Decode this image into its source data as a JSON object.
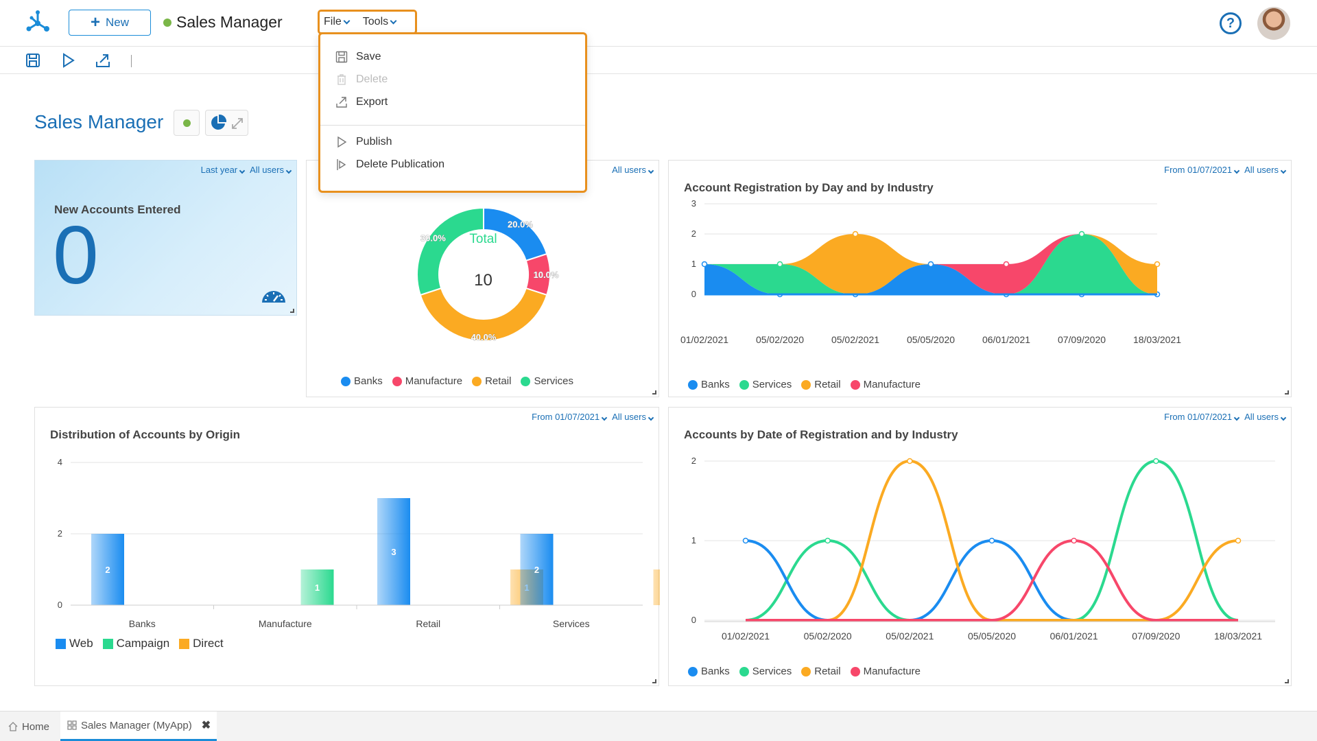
{
  "header": {
    "new_label": "New",
    "app_title": "Sales Manager",
    "menus": [
      {
        "label": "File"
      },
      {
        "label": "Tools"
      }
    ],
    "help_label": "?"
  },
  "dropdown": {
    "items": [
      {
        "label": "Save",
        "icon": "save-icon",
        "enabled": true
      },
      {
        "label": "Delete",
        "icon": "trash-icon",
        "enabled": false
      },
      {
        "label": "Export",
        "icon": "export-icon",
        "enabled": true
      },
      {
        "label": "Publish",
        "icon": "play-icon",
        "enabled": true
      },
      {
        "label": "Delete Publication",
        "icon": "unpublish-icon",
        "enabled": true
      }
    ]
  },
  "page": {
    "title": "Sales Manager"
  },
  "kpi": {
    "filters": [
      "Last year",
      "All users"
    ],
    "title": "New Accounts Entered",
    "value": "0"
  },
  "donut": {
    "filters": [
      "All users"
    ],
    "center_label": "Total",
    "center_value": "10"
  },
  "area_chart": {
    "filters": [
      "From 01/07/2021",
      "All users"
    ],
    "title": "Account Registration by Day and by Industry"
  },
  "bar_chart": {
    "filters": [
      "From 01/07/2021",
      "All users"
    ],
    "title": "Distribution of Accounts by Origin"
  },
  "line_chart": {
    "filters": [
      "From 01/07/2021",
      "All users"
    ],
    "title": "Accounts by Date of Registration and by Industry"
  },
  "bottom_tabs": [
    {
      "label": "Home"
    },
    {
      "label": "Sales Manager (MyApp)"
    }
  ],
  "colors": {
    "accent": "#1a6fb5",
    "highlight": "#e8901e",
    "banks": "#1a8cf0",
    "services": "#2bd98f",
    "retail": "#fbaa22",
    "manufacture": "#f7476a"
  },
  "chart_data": [
    {
      "type": "pie",
      "categories": [
        "Banks",
        "Manufacture",
        "Retail",
        "Services"
      ],
      "values": [
        20,
        10,
        40,
        30
      ],
      "labels": [
        "20.0%",
        "10.0%",
        "40.0%",
        "30.0%"
      ],
      "center": {
        "label": "Total",
        "value": 10
      },
      "legend": "bottom"
    },
    {
      "type": "area",
      "title": "Account Registration by Day and by Industry",
      "x": [
        "01/02/2021",
        "05/02/2020",
        "05/02/2021",
        "05/05/2020",
        "06/01/2021",
        "07/09/2020",
        "18/03/2021"
      ],
      "series": [
        {
          "name": "Banks",
          "values": [
            1,
            0,
            0,
            1,
            0,
            0,
            0
          ]
        },
        {
          "name": "Services",
          "values": [
            0,
            1,
            0,
            0,
            0,
            2,
            0
          ]
        },
        {
          "name": "Retail",
          "values": [
            0,
            0,
            2,
            0,
            0,
            0,
            1
          ]
        },
        {
          "name": "Manufacture",
          "values": [
            0,
            0,
            0,
            0,
            1,
            0,
            0
          ]
        }
      ],
      "yticks": [
        "0",
        "1",
        "2",
        "3"
      ],
      "ylim": [
        0,
        3
      ],
      "stacked": true,
      "legend": "bottom"
    },
    {
      "type": "bar",
      "title": "Distribution of Accounts by Origin",
      "categories": [
        "Banks",
        "Manufacture",
        "Retail",
        "Services"
      ],
      "series": [
        {
          "name": "Web",
          "values": [
            2,
            0,
            3,
            2
          ]
        },
        {
          "name": "Campaign",
          "values": [
            0,
            1,
            0,
            0
          ]
        },
        {
          "name": "Direct",
          "values": [
            0,
            0,
            1,
            1
          ]
        }
      ],
      "yticks": [
        "0",
        "2",
        "4"
      ],
      "ylim": [
        0,
        4
      ],
      "legend": "bottom-left"
    },
    {
      "type": "line",
      "title": "Accounts by Date of Registration and by Industry",
      "x": [
        "01/02/2021",
        "05/02/2020",
        "05/02/2021",
        "05/05/2020",
        "06/01/2021",
        "07/09/2020",
        "18/03/2021"
      ],
      "series": [
        {
          "name": "Banks",
          "values": [
            1,
            0,
            0,
            1,
            0,
            0,
            0
          ]
        },
        {
          "name": "Services",
          "values": [
            0,
            1,
            0,
            0,
            0,
            2,
            0
          ]
        },
        {
          "name": "Retail",
          "values": [
            0,
            0,
            2,
            0,
            0,
            0,
            1
          ]
        },
        {
          "name": "Manufacture",
          "values": [
            0,
            0,
            0,
            0,
            1,
            0,
            0
          ]
        }
      ],
      "yticks": [
        "0",
        "1",
        "2"
      ],
      "ylim": [
        0,
        2
      ],
      "legend": "bottom"
    }
  ]
}
